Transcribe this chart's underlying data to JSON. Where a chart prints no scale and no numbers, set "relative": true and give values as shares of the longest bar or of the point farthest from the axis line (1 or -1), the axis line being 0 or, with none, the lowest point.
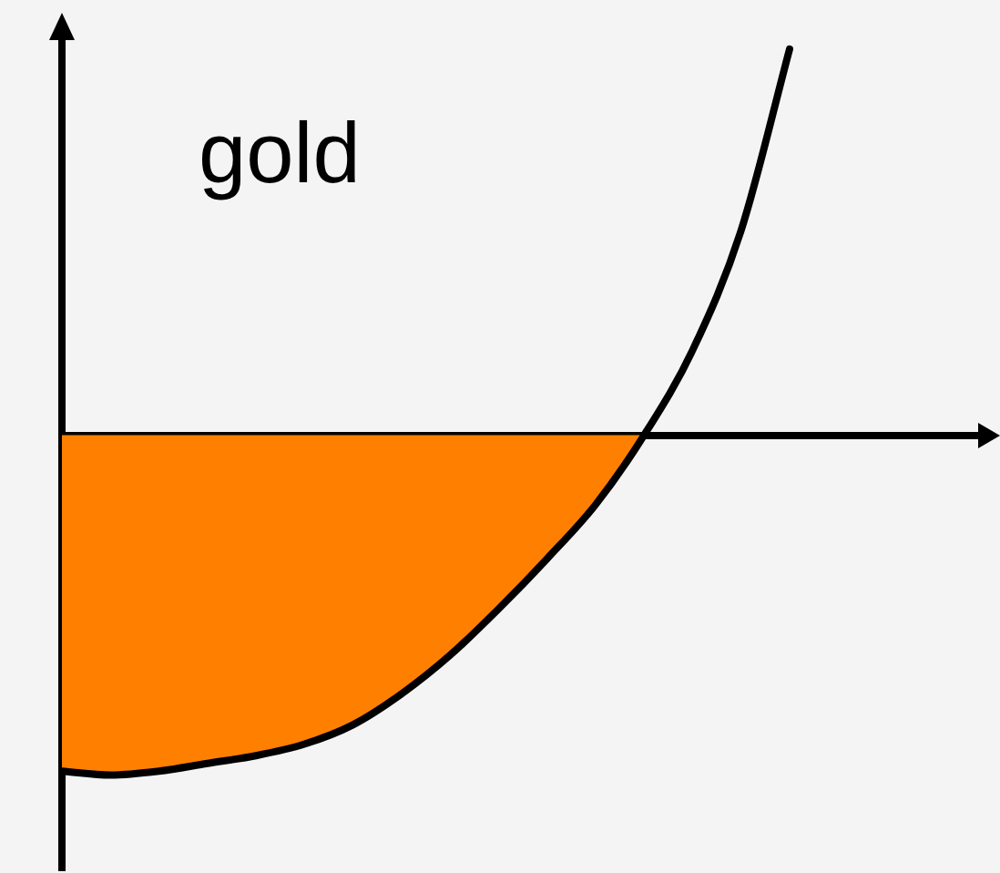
{
  "chart_data": {
    "type": "line",
    "relative": true,
    "marker": "none",
    "annotations": [
      "gold"
    ],
    "categories": [
      null,
      null,
      null,
      null,
      null,
      null,
      null,
      null,
      null,
      null,
      null,
      null,
      null,
      null,
      null,
      null,
      null,
      null,
      null,
      null
    ],
    "series": [
      {
        "type": "area",
        "color": "#ff8000",
        "values": [
          -0.87,
          -0.88,
          -0.87,
          -0.85,
          -0.83,
          -0.8,
          -0.75,
          -0.67,
          -0.57,
          -0.45,
          -0.32,
          -0.18,
          0,
          null,
          null,
          null,
          null,
          null,
          null,
          null
        ]
      },
      {
        "color": "#000000",
        "values": [
          -0.87,
          -0.88,
          -0.87,
          -0.85,
          -0.83,
          -0.8,
          -0.75,
          -0.67,
          -0.57,
          -0.45,
          -0.32,
          -0.18,
          0,
          0.22,
          0.53,
          1,
          null,
          null,
          null,
          null
        ]
      }
    ]
  }
}
